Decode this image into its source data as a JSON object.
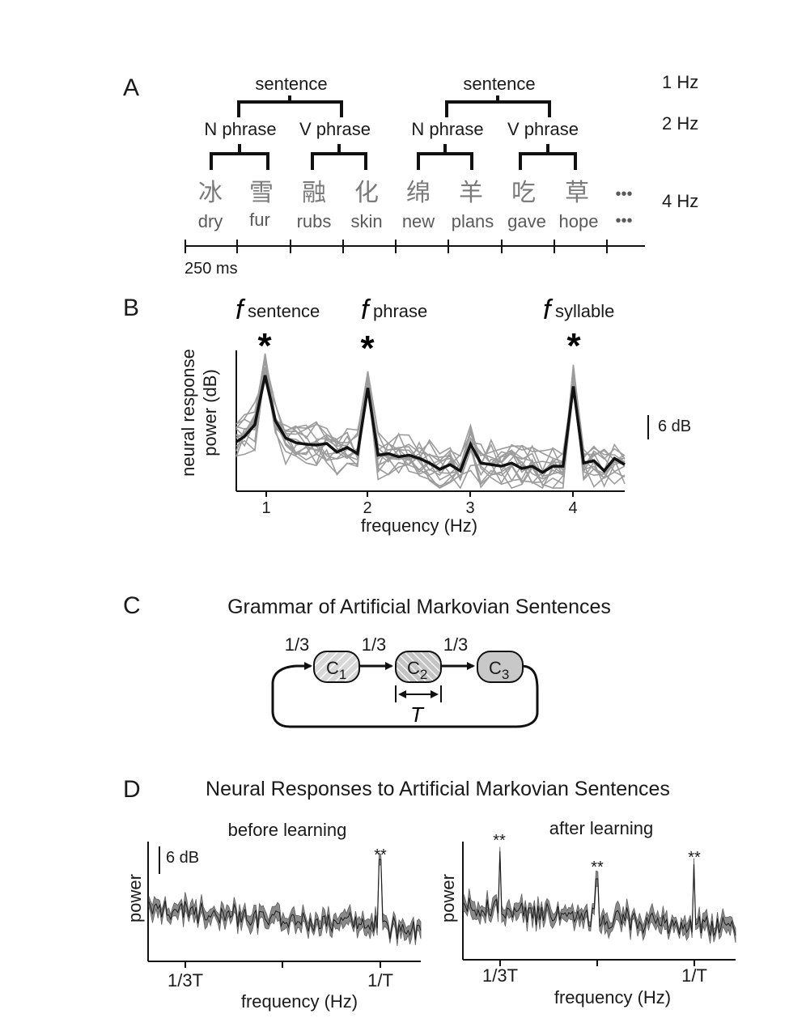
{
  "panelA": {
    "letter": "A",
    "tiers": [
      "1 Hz",
      "2 Hz",
      "4 Hz"
    ],
    "sentence_labels": [
      "sentence",
      "sentence"
    ],
    "phrase_labels": [
      "N phrase",
      "V phrase",
      "N phrase",
      "V phrase"
    ],
    "characters": [
      "冰",
      "雪",
      "融",
      "化",
      "绵",
      "羊",
      "吃",
      "草"
    ],
    "glosses": [
      "dry",
      "fur",
      "rubs",
      "skin",
      "new",
      "plans",
      "gave",
      "hope"
    ],
    "ellipsis": "•••",
    "time_label": "250 ms"
  },
  "panelB": {
    "letter": "B",
    "peak_labels": [
      {
        "f": "f",
        "sub": "sentence"
      },
      {
        "f": "f",
        "sub": "phrase"
      },
      {
        "f": "f",
        "sub": "syllable"
      }
    ],
    "star": "*",
    "ylabel_line1": "neural response",
    "ylabel_line2": "power (dB)",
    "xlabel": "frequency (Hz)",
    "scale_label": "6 dB",
    "chart_data": {
      "type": "line",
      "x_ticks": [
        1,
        2,
        3,
        4
      ],
      "xlim": [
        0.72,
        4.5
      ],
      "mean": {
        "x": [
          0.72,
          0.8,
          0.9,
          1.0,
          1.1,
          1.2,
          1.3,
          1.4,
          1.5,
          1.6,
          1.7,
          1.8,
          1.9,
          2.0,
          2.1,
          2.2,
          2.3,
          2.4,
          2.5,
          2.6,
          2.7,
          2.8,
          2.9,
          3.0,
          3.1,
          3.2,
          3.3,
          3.4,
          3.5,
          3.6,
          3.7,
          3.8,
          3.9,
          4.0,
          4.1,
          4.2,
          4.3,
          4.4,
          4.5
        ],
        "y": [
          6.3,
          7.0,
          8.5,
          14.8,
          9.0,
          6.8,
          6.2,
          6.0,
          5.9,
          6.1,
          5.0,
          5.6,
          4.8,
          13.2,
          4.6,
          4.8,
          4.4,
          4.6,
          4.2,
          3.6,
          2.8,
          3.4,
          2.6,
          6.0,
          3.6,
          3.4,
          3.2,
          3.6,
          2.9,
          3.2,
          2.4,
          3.2,
          3.2,
          13.4,
          3.6,
          3.9,
          2.6,
          4.2,
          3.4
        ]
      },
      "ylim": [
        0,
        18
      ]
    }
  },
  "panelC": {
    "letter": "C",
    "title": "Grammar of Artificial Markovian Sentences",
    "nodes": [
      {
        "label": "C",
        "sub": "1"
      },
      {
        "label": "C",
        "sub": "2"
      },
      {
        "label": "C",
        "sub": "3"
      }
    ],
    "transition_labels": [
      "1/3",
      "1/3",
      "1/3"
    ],
    "period_label": "T"
  },
  "panelD": {
    "letter": "D",
    "title": "Neural Responses to Artificial Markovian Sentences",
    "ylabel": "power",
    "xlabel": "frequency (Hz)",
    "scale_label": "6 dB",
    "stars": "**",
    "tick_labels": [
      "1/3T",
      "1/T"
    ],
    "left_title": "before learning",
    "right_title": "after learning",
    "chart_data": [
      {
        "type": "area",
        "title": "before learning",
        "x_ticks": [
          "1/3T",
          "1/T"
        ],
        "peaks_at": [
          "1/T"
        ],
        "significance": {
          "1/T": "**"
        }
      },
      {
        "type": "area",
        "title": "after learning",
        "x_ticks": [
          "1/3T",
          "1/T"
        ],
        "peaks_at": [
          "1/3T",
          "2/3T",
          "1/T"
        ],
        "significance": {
          "1/3T": "**",
          "2/3T": "**",
          "1/T": "**"
        }
      }
    ]
  }
}
